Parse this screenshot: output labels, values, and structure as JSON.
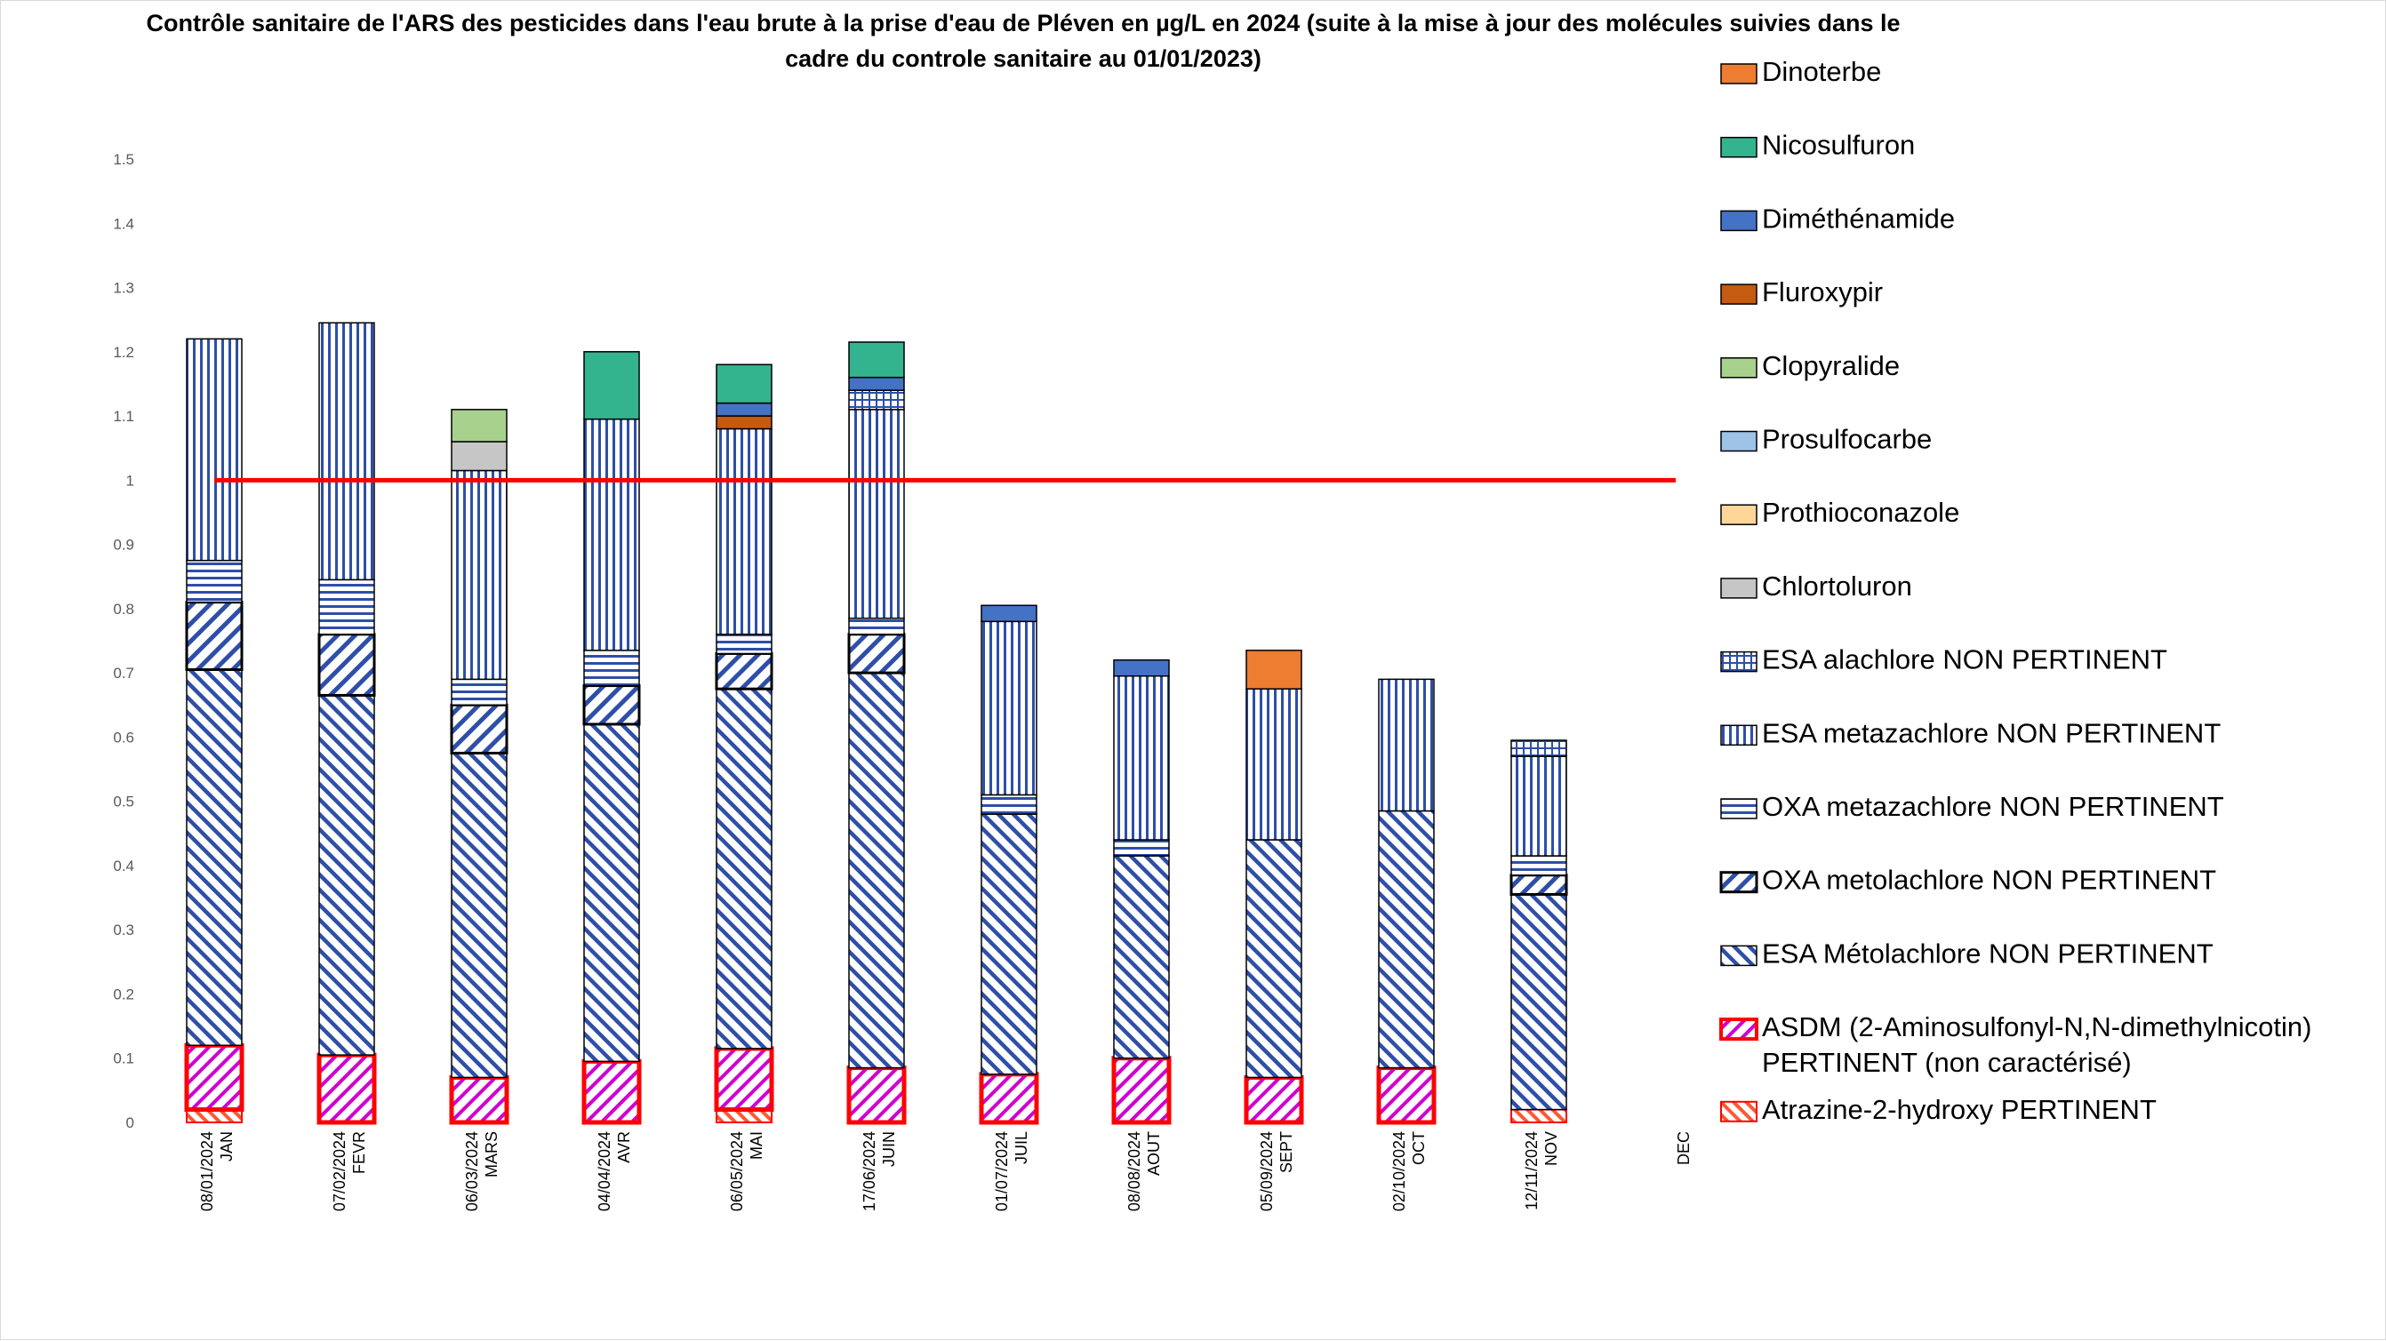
{
  "chart_data": {
    "type": "bar",
    "stacked": true,
    "title_line1": "Contrôle sanitaire de l'ARS des pesticides dans l'eau brute à la prise d'eau de Pléven en µg/L en 2024  (suite à la mise à jour des molécules suivies dans le",
    "title_line2": "cadre du controle sanitaire au 01/01/2023)",
    "xlabel": "",
    "ylabel": "",
    "ylim": [
      0,
      1.5
    ],
    "yticks": [
      "0",
      "0.1",
      "0.2",
      "0.3",
      "0.4",
      "0.5",
      "0.6",
      "0.7",
      "0.8",
      "0.9",
      "1",
      "1.1",
      "1.2",
      "1.3",
      "1.4",
      "1.5"
    ],
    "grid": false,
    "legend_position": "right",
    "threshold": {
      "value": 1,
      "color": "#ff0000"
    },
    "categories": [
      {
        "date": "08/01/2024",
        "month": "JAN"
      },
      {
        "date": "07/02/2024",
        "month": "FEVR"
      },
      {
        "date": "06/03/2024",
        "month": "MARS"
      },
      {
        "date": "04/04/2024",
        "month": "AVR"
      },
      {
        "date": "06/05/2024",
        "month": "MAI"
      },
      {
        "date": "17/06/2024",
        "month": "JUIN"
      },
      {
        "date": "01/07/2024",
        "month": "JUIL"
      },
      {
        "date": "08/08/2024",
        "month": "AOUT"
      },
      {
        "date": "05/09/2024",
        "month": "SEPT"
      },
      {
        "date": "02/10/2024",
        "month": "OCT"
      },
      {
        "date": "12/11/2024",
        "month": "NOV"
      },
      {
        "date": "",
        "month": "DEC"
      }
    ],
    "series": [
      {
        "name": "Atrazine-2-hydroxy PERTINENT",
        "style": "atrazine",
        "color": "#ff5733",
        "values": [
          0.02,
          0,
          0,
          0,
          0.02,
          0,
          0,
          0,
          0,
          0,
          0.02,
          0
        ]
      },
      {
        "name": "ASDM (2-Aminosulfonyl-N,N-dimethylnicotin) PERTINENT (non caractérisé)",
        "style": "asdm",
        "color": "#d000d0",
        "values": [
          0.1,
          0.105,
          0.07,
          0.095,
          0.095,
          0.085,
          0.075,
          0.1,
          0.07,
          0.085,
          0,
          0
        ]
      },
      {
        "name": "ESA Métolachlore NON PERTINENT",
        "style": "esa_metol",
        "color": "#2e4fa8",
        "values": [
          0.585,
          0.56,
          0.505,
          0.525,
          0.56,
          0.615,
          0.405,
          0.315,
          0.37,
          0.4,
          0.335,
          0
        ]
      },
      {
        "name": "OXA metolachlore NON PERTINENT",
        "style": "oxa_metol",
        "color": "#2e4fa8",
        "values": [
          0.105,
          0.095,
          0.075,
          0.06,
          0.055,
          0.06,
          0,
          0,
          0,
          0,
          0.03,
          0
        ]
      },
      {
        "name": "OXA metazachlore NON PERTINENT",
        "style": "oxa_metaz",
        "color": "#2e4fa8",
        "values": [
          0.065,
          0.085,
          0.04,
          0.055,
          0.03,
          0.025,
          0.03,
          0.025,
          0,
          0,
          0.03,
          0
        ]
      },
      {
        "name": "ESA metazachlore NON PERTINENT",
        "style": "esa_metaz",
        "color": "#2e4fa8",
        "values": [
          0.345,
          0.4,
          0.325,
          0.36,
          0.32,
          0.325,
          0.27,
          0.255,
          0.235,
          0.205,
          0.155,
          0
        ]
      },
      {
        "name": "ESA alachlore NON PERTINENT",
        "style": "esa_alach",
        "color": "#2e4fa8",
        "values": [
          0,
          0,
          0,
          0,
          0,
          0.03,
          0,
          0,
          0,
          0,
          0.025,
          0
        ]
      },
      {
        "name": "Chlortoluron",
        "style": "solid",
        "color": "#c6c6c6",
        "values": [
          0,
          0,
          0.045,
          0,
          0,
          0,
          0,
          0,
          0,
          0,
          0,
          0
        ]
      },
      {
        "name": "Prothioconazole",
        "style": "solid",
        "color": "#ffd699",
        "values": [
          0,
          0,
          0,
          0,
          0,
          0,
          0,
          0,
          0,
          0,
          0,
          0
        ]
      },
      {
        "name": "Prosulfocarbe",
        "style": "solid",
        "color": "#9dc3e6",
        "values": [
          0,
          0,
          0,
          0,
          0,
          0,
          0,
          0,
          0,
          0,
          0,
          0
        ]
      },
      {
        "name": "Clopyralide",
        "style": "solid",
        "color": "#a9d18e",
        "values": [
          0,
          0,
          0.05,
          0,
          0,
          0,
          0,
          0,
          0,
          0,
          0,
          0
        ]
      },
      {
        "name": "Fluroxypir",
        "style": "solid",
        "color": "#c55a11",
        "values": [
          0,
          0,
          0,
          0,
          0.02,
          0,
          0,
          0,
          0,
          0,
          0,
          0
        ]
      },
      {
        "name": "Diméthénamide",
        "style": "solid",
        "color": "#4472c4",
        "values": [
          0,
          0,
          0,
          0,
          0.02,
          0.02,
          0.025,
          0.025,
          0,
          0,
          0,
          0
        ]
      },
      {
        "name": "Nicosulfuron",
        "style": "solid",
        "color": "#33b38e",
        "values": [
          0,
          0,
          0,
          0.105,
          0.06,
          0.055,
          0,
          0,
          0,
          0,
          0,
          0
        ]
      },
      {
        "name": "Dinoterbe",
        "style": "solid",
        "color": "#ed7d31",
        "values": [
          0,
          0,
          0,
          0,
          0,
          0,
          0,
          0,
          0.06,
          0,
          0,
          0
        ]
      }
    ]
  }
}
